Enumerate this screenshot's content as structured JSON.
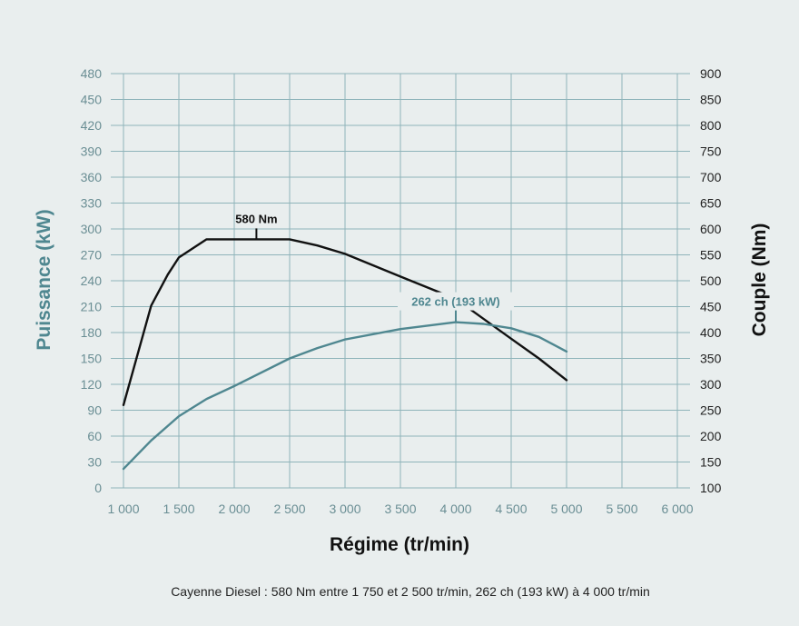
{
  "chart_data": {
    "type": "line",
    "xlabel": "Régime (tr/min)",
    "ylabel_left": "Puissance (kW)",
    "ylabel_right": "Couple (Nm)",
    "xlim": [
      1000,
      6000
    ],
    "ylim_left": [
      0,
      480
    ],
    "ylim_right": [
      100,
      900
    ],
    "x_ticks": [
      1000,
      1500,
      2000,
      2500,
      3000,
      3500,
      4000,
      4500,
      5000,
      5500,
      6000
    ],
    "x_tick_labels": [
      "1 000",
      "1 500",
      "2 000",
      "2 500",
      "3 000",
      "3 500",
      "4 000",
      "4 500",
      "5 000",
      "5 500",
      "6 000"
    ],
    "left_ticks": [
      0,
      30,
      60,
      90,
      120,
      150,
      180,
      210,
      240,
      270,
      300,
      330,
      360,
      390,
      420,
      450,
      480
    ],
    "right_ticks": [
      100,
      150,
      200,
      250,
      300,
      350,
      400,
      450,
      500,
      550,
      600,
      650,
      700,
      750,
      800,
      850,
      900
    ],
    "grid": true,
    "series": [
      {
        "axis": "right",
        "color": "#111111",
        "x": [
          1000,
          1250,
          1400,
          1500,
          1750,
          2000,
          2500,
          2750,
          3000,
          3500,
          4000,
          4500,
          4750,
          5000
        ],
        "y": [
          260,
          452,
          512,
          545,
          580,
          580,
          580,
          568,
          552,
          508,
          465,
          388,
          350,
          308
        ]
      },
      {
        "axis": "left",
        "color": "#4f8790",
        "x": [
          1000,
          1250,
          1500,
          1750,
          2000,
          2500,
          2750,
          3000,
          3500,
          4000,
          4250,
          4500,
          4750,
          5000
        ],
        "y": [
          22,
          55,
          83,
          103,
          118,
          150,
          162,
          172,
          184,
          192,
          190,
          185,
          175,
          158
        ]
      }
    ],
    "annotations": [
      {
        "text": "580 Nm",
        "series": 0,
        "x": 2200,
        "y": 580
      },
      {
        "text": "262 ch (193 kW)",
        "series": 1,
        "x": 4000,
        "y": 192
      }
    ],
    "caption": "Cayenne Diesel : 580 Nm entre 1 750 et 2 500 tr/min, 262 ch (193 kW) à 4 000 tr/min"
  }
}
